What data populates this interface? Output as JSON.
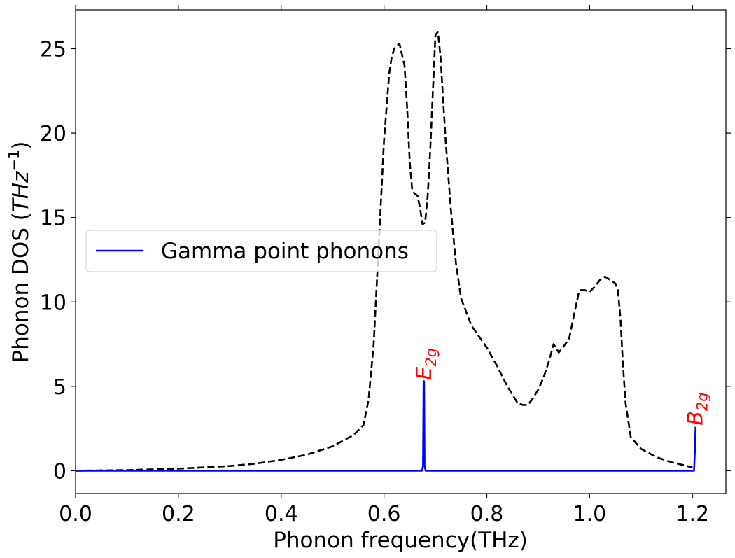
{
  "chart_data": {
    "type": "line",
    "xlabel": "Phonon frequency(THz)",
    "ylabel": {
      "prefix": "Phonon DOS (",
      "unit": "THz",
      "exp": "−1",
      "suffix": ")"
    },
    "xlim": [
      0.0,
      1.265
    ],
    "ylim": [
      -1.35,
      27.3
    ],
    "x_ticks": [
      0.0,
      0.2,
      0.4,
      0.6,
      0.8,
      1.0,
      1.2
    ],
    "x_tick_labels": [
      "0.0",
      "0.2",
      "0.4",
      "0.6",
      "0.8",
      "1.0",
      "1.2"
    ],
    "y_ticks": [
      0,
      5,
      10,
      15,
      20,
      25
    ],
    "y_tick_labels": [
      "0",
      "5",
      "10",
      "15",
      "20",
      "25"
    ],
    "grid": false,
    "legend": {
      "position": "center-left",
      "entries": [
        "Gamma point phonons"
      ]
    },
    "series": [
      {
        "name": "",
        "style": "dashed",
        "color": "#000000",
        "x": [
          0.0,
          0.1,
          0.2,
          0.3,
          0.35,
          0.4,
          0.45,
          0.5,
          0.54,
          0.56,
          0.57,
          0.58,
          0.59,
          0.6,
          0.61,
          0.615,
          0.62,
          0.63,
          0.64,
          0.645,
          0.65,
          0.655,
          0.66,
          0.665,
          0.67,
          0.675,
          0.68,
          0.685,
          0.69,
          0.7,
          0.705,
          0.71,
          0.72,
          0.73,
          0.74,
          0.75,
          0.77,
          0.8,
          0.82,
          0.84,
          0.86,
          0.87,
          0.88,
          0.89,
          0.9,
          0.91,
          0.92,
          0.93,
          0.94,
          0.96,
          0.97,
          0.98,
          0.99,
          1.0,
          1.01,
          1.02,
          1.03,
          1.04,
          1.05,
          1.055,
          1.06,
          1.065,
          1.07,
          1.08,
          1.1,
          1.13,
          1.16,
          1.2
        ],
        "values": [
          0.0,
          0.04,
          0.12,
          0.28,
          0.42,
          0.65,
          0.95,
          1.45,
          2.1,
          2.7,
          4.2,
          7.5,
          13.5,
          19.5,
          23.5,
          24.5,
          25.0,
          25.3,
          24.0,
          21.5,
          18.3,
          16.6,
          16.4,
          16.3,
          15.6,
          14.6,
          14.7,
          16.3,
          19.0,
          25.8,
          26.0,
          24.5,
          19.5,
          15.5,
          12.3,
          10.2,
          8.6,
          7.3,
          6.2,
          5.0,
          4.0,
          3.9,
          3.9,
          4.3,
          4.8,
          5.5,
          6.4,
          7.5,
          7.0,
          7.8,
          9.3,
          10.7,
          10.7,
          10.6,
          10.9,
          11.3,
          11.5,
          11.3,
          11.1,
          10.7,
          9.0,
          6.2,
          4.0,
          2.0,
          1.3,
          0.8,
          0.5,
          0.2
        ]
      },
      {
        "name": "Gamma point phonons",
        "style": "solid",
        "color": "#0000ff",
        "x": [
          0.0,
          0.674,
          0.676,
          0.677,
          0.678,
          0.679,
          0.681,
          1.2,
          1.203,
          1.205,
          1.206
        ],
        "values": [
          0.0,
          0.0,
          0.3,
          5.3,
          5.3,
          0.3,
          0.0,
          0.0,
          0.0,
          1.3,
          2.6
        ]
      }
    ],
    "annotations": [
      {
        "base": "E",
        "sub": "2g",
        "x": 0.678,
        "y": 5.3,
        "color": "#ff0000"
      },
      {
        "base": "B",
        "sub": "2g",
        "x": 1.206,
        "y": 2.6,
        "color": "#ff0000"
      }
    ]
  }
}
